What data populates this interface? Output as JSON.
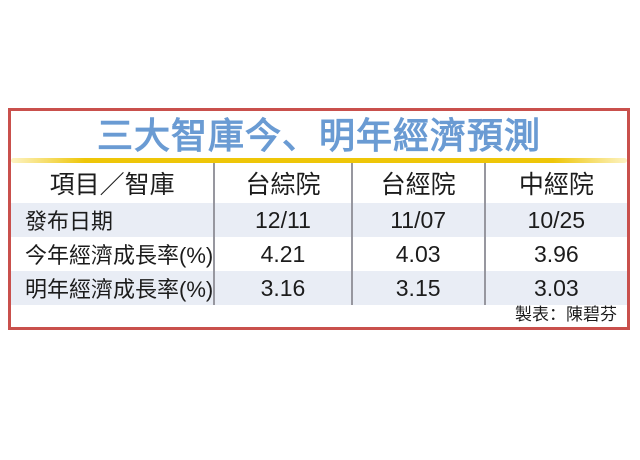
{
  "chart_data": {
    "type": "table",
    "title": "三大智庫今、明年經濟預測",
    "columns": [
      "項目／智庫",
      "台綜院",
      "台經院",
      "中經院"
    ],
    "rows": [
      [
        "發布日期",
        "12/11",
        "11/07",
        "10/25"
      ],
      [
        "今年經濟成長率(%)",
        "4.21",
        "4.03",
        "3.96"
      ],
      [
        "明年經濟成長率(%)",
        "3.16",
        "3.15",
        "3.03"
      ]
    ],
    "credit": "製表：陳碧芬"
  },
  "colors": {
    "panel_border_red": "#c9504c",
    "title_blue": "#6a9bd3",
    "rule_gold": "#eec608",
    "band_blue": "#e9edf5",
    "divider_gray": "#97979f",
    "text": "#1c1c1c"
  }
}
